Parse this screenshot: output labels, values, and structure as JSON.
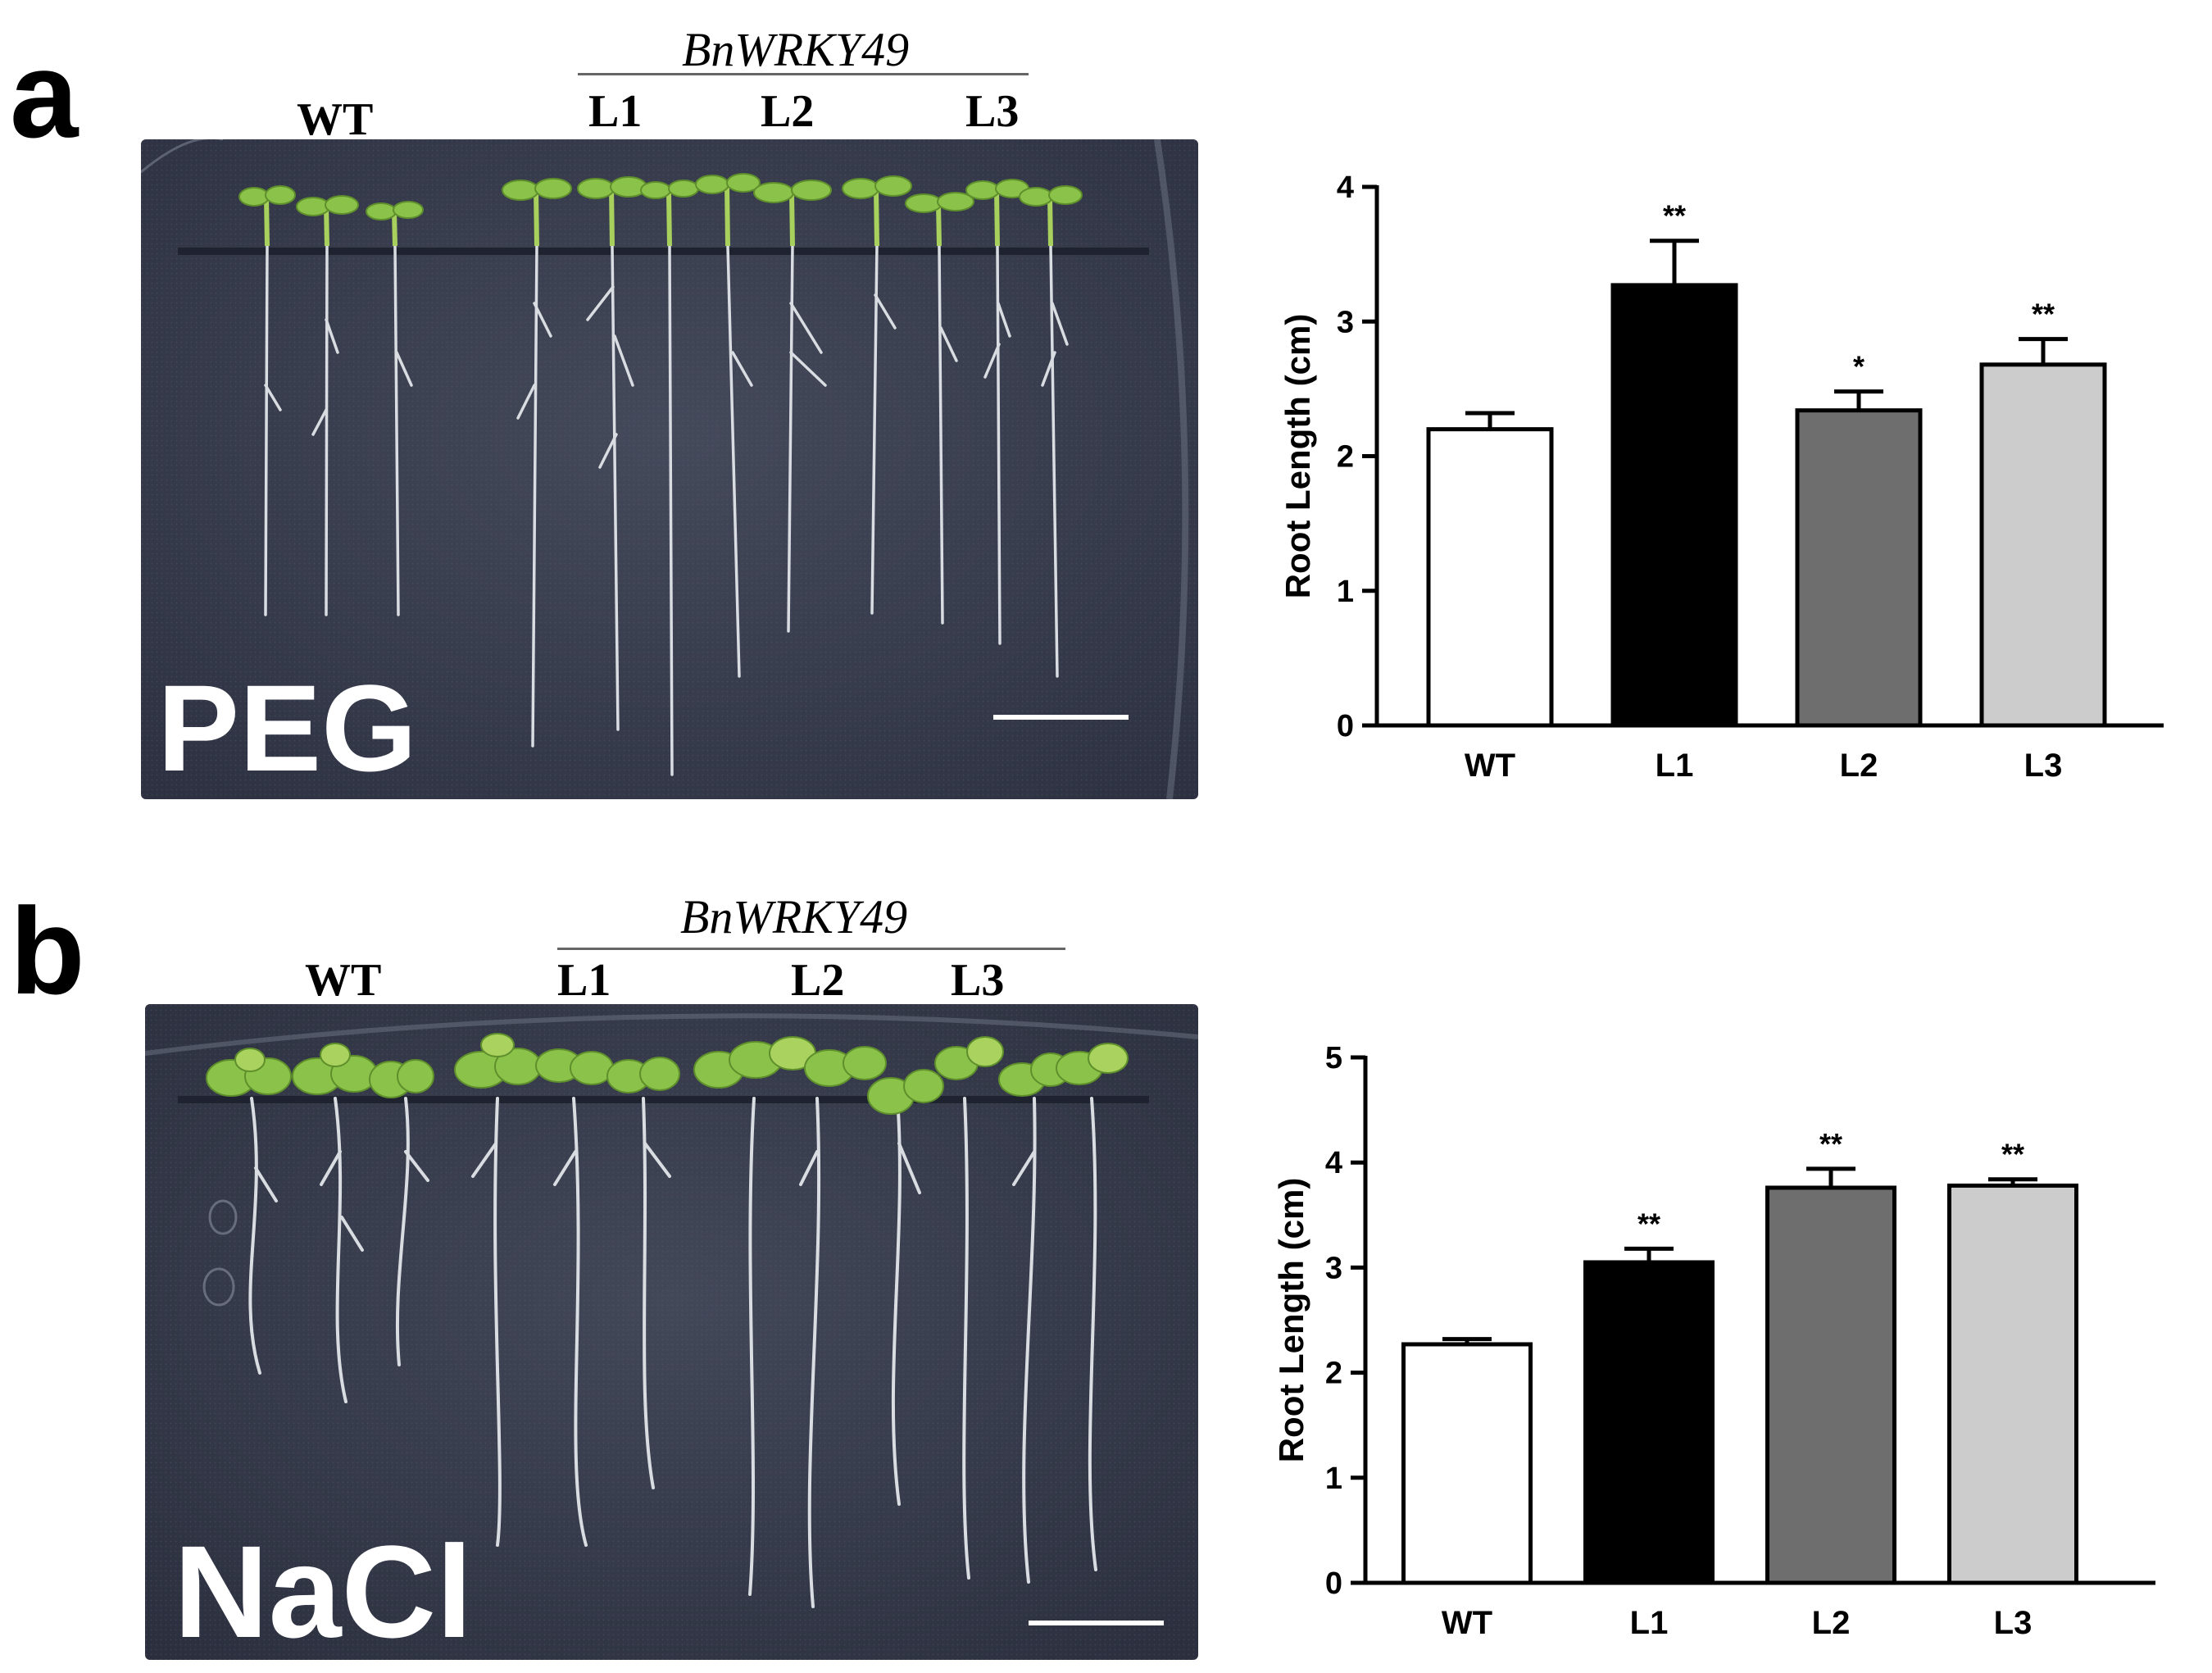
{
  "panel_a": {
    "letter": "a",
    "gene": "BnWRKY49",
    "labels": [
      "WT",
      "L1",
      "L2",
      "L3"
    ],
    "treatment": "PEG"
  },
  "panel_b": {
    "letter": "b",
    "gene": "BnWRKY49",
    "labels": [
      "WT",
      "L1",
      "L2",
      "L3"
    ],
    "treatment": "NaCl"
  },
  "chart_data": [
    {
      "type": "bar",
      "categories": [
        "WT",
        "L1",
        "L2",
        "L3"
      ],
      "values": [
        2.2,
        3.27,
        2.34,
        2.68
      ],
      "errors": [
        0.12,
        0.33,
        0.14,
        0.19
      ],
      "significance": [
        "",
        "**",
        "*",
        "**"
      ],
      "colors": [
        "#ffffff",
        "#000000",
        "#6e6e6e",
        "#cccccc"
      ],
      "ylabel": "Root Length (cm)",
      "ylim": [
        0,
        4
      ],
      "yticks": [
        0,
        1,
        2,
        3,
        4
      ],
      "grid": false
    },
    {
      "type": "bar",
      "categories": [
        "WT",
        "L1",
        "L2",
        "L3"
      ],
      "values": [
        2.27,
        3.05,
        3.76,
        3.78
      ],
      "errors": [
        0.05,
        0.13,
        0.18,
        0.06
      ],
      "significance": [
        "",
        "**",
        "**",
        "**"
      ],
      "colors": [
        "#ffffff",
        "#000000",
        "#6e6e6e",
        "#cccccc"
      ],
      "ylabel": "Root Length (cm)",
      "ylim": [
        0,
        5
      ],
      "yticks": [
        0,
        1,
        2,
        3,
        4,
        5
      ],
      "grid": false
    }
  ]
}
